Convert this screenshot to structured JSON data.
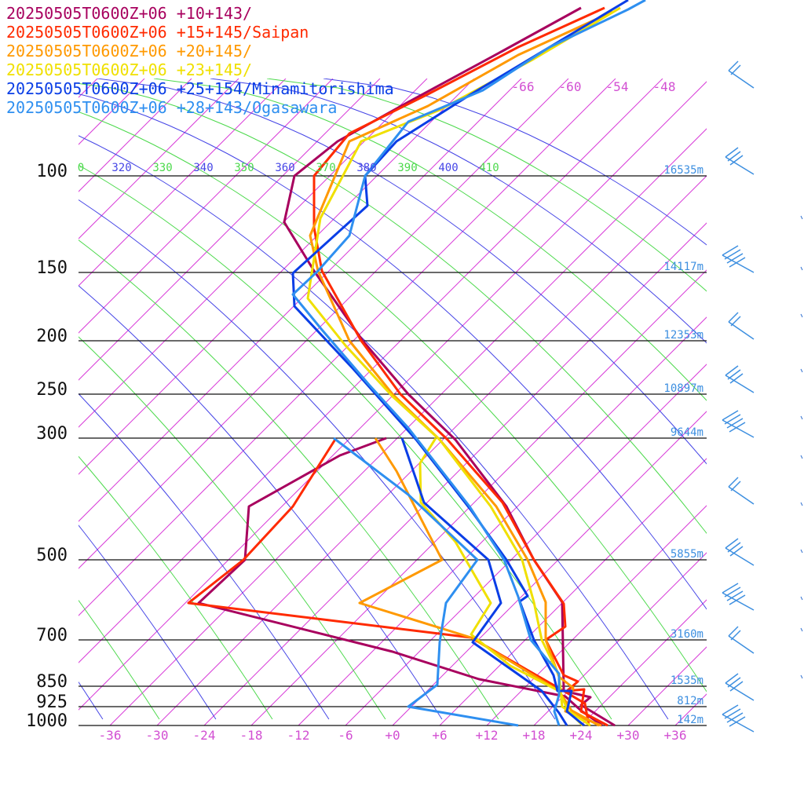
{
  "chart_data": {
    "type": "line",
    "legend": [
      {
        "label": "20250505T0600Z+06 +10+143/",
        "color": "#a8005e"
      },
      {
        "label": "20250505T0600Z+06 +15+145/Saipan",
        "color": "#ff2a00"
      },
      {
        "label": "20250505T0600Z+06 +20+145/",
        "color": "#ff9900"
      },
      {
        "label": "20250505T0600Z+06 +23+145/",
        "color": "#f0e000"
      },
      {
        "label": "20250505T0600Z+06 +25+154/Minamitorishima",
        "color": "#0a3ee6"
      },
      {
        "label": "20250505T0600Z+06 +28+143/Ogasawara",
        "color": "#2e8ff0"
      }
    ],
    "pressure_labels": [
      "100",
      "150",
      "200",
      "250",
      "300",
      "500",
      "700",
      "850",
      "925",
      "1000"
    ],
    "height_labels": [
      {
        "p": 100,
        "text": "16535m"
      },
      {
        "p": 150,
        "text": "14117m"
      },
      {
        "p": 200,
        "text": "12353m"
      },
      {
        "p": 250,
        "text": "10897m"
      },
      {
        "p": 300,
        "text": "9644m"
      },
      {
        "p": 500,
        "text": "5855m"
      },
      {
        "p": 700,
        "text": "3160m"
      },
      {
        "p": 850,
        "text": "1535m"
      },
      {
        "p": 925,
        "text": "812m"
      },
      {
        "p": 1000,
        "text": "142m"
      }
    ],
    "x_ticks": [
      "-36",
      "-30",
      "-24",
      "-18",
      "-12",
      "-6",
      "+0",
      "+6",
      "+12",
      "+18",
      "+24",
      "+30",
      "+36"
    ],
    "upper_t_labels": [
      "-66",
      "-60",
      "-54",
      "-48"
    ],
    "theta_labels": [
      {
        "text": "0",
        "color": "#4cd94c"
      },
      {
        "text": "320",
        "color": "#4545e6"
      },
      {
        "text": "330",
        "color": "#4cd94c"
      },
      {
        "text": "340",
        "color": "#4545e6"
      },
      {
        "text": "350",
        "color": "#4cd94c"
      },
      {
        "text": "360",
        "color": "#4545e6"
      },
      {
        "text": "370",
        "color": "#4cd94c"
      },
      {
        "text": "380",
        "color": "#4545e6"
      },
      {
        "text": "390",
        "color": "#4cd94c"
      },
      {
        "text": "400",
        "color": "#4545e6"
      },
      {
        "text": "410",
        "color": "#4cd94c"
      }
    ],
    "x_label": "",
    "y_label": "",
    "series": [
      {
        "name": "20250505T0600Z+06 +10+143/",
        "color": "#a8005e",
        "lines": [
          [
            [
              740,
              10
            ],
            [
              640,
              65
            ],
            [
              520,
              130
            ],
            [
              430,
              180
            ],
            [
              375,
              224
            ],
            [
              362,
              283
            ],
            [
              400,
              345
            ],
            [
              462,
              434
            ],
            [
              520,
              502
            ],
            [
              580,
              560
            ],
            [
              645,
              645
            ],
            [
              680,
              713
            ],
            [
              716,
              767
            ],
            [
              718,
              880
            ],
            [
              752,
              888
            ],
            [
              740,
              898
            ],
            [
              783,
              924
            ]
          ],
          [
            [
              492,
              558
            ],
            [
              433,
              580
            ],
            [
              317,
              645
            ],
            [
              312,
              713
            ],
            [
              253,
              768
            ],
            [
              500,
              830
            ],
            [
              610,
              865
            ],
            [
              720,
              887
            ],
            [
              740,
              905
            ],
            [
              767,
              924
            ]
          ]
        ]
      },
      {
        "name": "20250505T0600Z+06 +15+145/Saipan",
        "color": "#ff2a00",
        "lines": [
          [
            [
              770,
              10
            ],
            [
              660,
              60
            ],
            [
              545,
              120
            ],
            [
              445,
              170
            ],
            [
              400,
              224
            ],
            [
              400,
              290
            ],
            [
              410,
              345
            ],
            [
              460,
              434
            ],
            [
              510,
              502
            ],
            [
              570,
              560
            ],
            [
              640,
              640
            ],
            [
              680,
              713
            ],
            [
              718,
              769
            ],
            [
              720,
              798
            ],
            [
              695,
              815
            ],
            [
              718,
              860
            ],
            [
              736,
              868
            ],
            [
              722,
              880
            ],
            [
              744,
              878
            ],
            [
              740,
              906
            ],
            [
              774,
              924
            ]
          ],
          [
            [
              428,
              558
            ],
            [
              373,
              645
            ],
            [
              310,
              713
            ],
            [
              240,
              768
            ],
            [
              600,
              812
            ],
            [
              718,
              880
            ],
            [
              745,
              896
            ],
            [
              750,
              924
            ]
          ]
        ]
      },
      {
        "name": "20250505T0600Z+06 +20+145/",
        "color": "#ff9900",
        "lines": [
          [
            [
              780,
              15
            ],
            [
              660,
              70
            ],
            [
              545,
              135
            ],
            [
              445,
              180
            ],
            [
              395,
              300
            ],
            [
              405,
              345
            ],
            [
              445,
              434
            ],
            [
              500,
              502
            ],
            [
              560,
              560
            ],
            [
              632,
              645
            ],
            [
              672,
              713
            ],
            [
              695,
              767
            ],
            [
              695,
              815
            ],
            [
              712,
              862
            ],
            [
              730,
              876
            ],
            [
              720,
              906
            ],
            [
              766,
              924
            ]
          ],
          [
            [
              478,
              558
            ],
            [
              505,
              600
            ],
            [
              563,
              713
            ],
            [
              458,
              768
            ],
            [
              600,
              812
            ],
            [
              630,
              830
            ],
            [
              712,
              880
            ],
            [
              728,
              905
            ],
            [
              763,
              924
            ]
          ]
        ]
      },
      {
        "name": "20250505T0600Z+06 +23+145/",
        "color": "#f0e000",
        "lines": [
          [
            [
              790,
              10
            ],
            [
              680,
              75
            ],
            [
              560,
              140
            ],
            [
              460,
              180
            ],
            [
              408,
              278
            ],
            [
              392,
              380
            ],
            [
              440,
              440
            ],
            [
              500,
              505
            ],
            [
              560,
              560
            ],
            [
              625,
              645
            ],
            [
              665,
              713
            ],
            [
              680,
              767
            ],
            [
              690,
              815
            ],
            [
              712,
              860
            ],
            [
              716,
              900
            ],
            [
              752,
              924
            ]
          ],
          [
            [
              555,
              558
            ],
            [
              535,
              590
            ],
            [
              536,
              640
            ],
            [
              580,
              690
            ],
            [
              625,
              768
            ],
            [
              600,
              808
            ],
            [
              650,
              848
            ],
            [
              712,
              880
            ],
            [
              724,
              906
            ],
            [
              742,
              924
            ]
          ]
        ]
      },
      {
        "name": "20250505T0600Z+06 +25+154/Minamitorishima",
        "color": "#0a3ee6",
        "lines": [
          [
            [
              800,
              0
            ],
            [
              700,
              60
            ],
            [
              600,
              120
            ],
            [
              505,
              180
            ],
            [
              465,
              224
            ],
            [
              468,
              262
            ],
            [
              373,
              348
            ],
            [
              375,
              390
            ],
            [
              450,
              470
            ],
            [
              530,
              560
            ],
            [
              600,
              650
            ],
            [
              645,
              713
            ],
            [
              672,
              759
            ],
            [
              662,
              766
            ],
            [
              680,
              815
            ],
            [
              705,
              860
            ],
            [
              710,
              880
            ],
            [
              728,
              880
            ],
            [
              722,
              906
            ],
            [
              744,
              924
            ]
          ],
          [
            [
              512,
              558
            ],
            [
              540,
              640
            ],
            [
              622,
              713
            ],
            [
              638,
              768
            ],
            [
              602,
              818
            ],
            [
              690,
              880
            ],
            [
              712,
              908
            ],
            [
              722,
              924
            ]
          ]
        ]
      },
      {
        "name": "20250505T0600Z+06 +28+143/Ogasawara",
        "color": "#2e8ff0",
        "lines": [
          [
            [
              822,
              0
            ],
            [
              800,
              12
            ],
            [
              700,
              60
            ],
            [
              615,
              115
            ],
            [
              520,
              155
            ],
            [
              465,
              224
            ],
            [
              445,
              300
            ],
            [
              405,
              345
            ],
            [
              373,
              375
            ],
            [
              410,
              420
            ],
            [
              470,
              490
            ],
            [
              520,
              545
            ],
            [
              598,
              645
            ],
            [
              642,
              713
            ],
            [
              660,
              760
            ],
            [
              676,
              815
            ],
            [
              712,
              858
            ],
            [
              712,
              885
            ],
            [
              706,
              906
            ],
            [
              712,
              924
            ]
          ],
          [
            [
              425,
              558
            ],
            [
              520,
              630
            ],
            [
              608,
              713
            ],
            [
              568,
              768
            ],
            [
              560,
              818
            ],
            [
              557,
              872
            ],
            [
              520,
              900
            ],
            [
              660,
              924
            ]
          ]
        ]
      }
    ]
  }
}
